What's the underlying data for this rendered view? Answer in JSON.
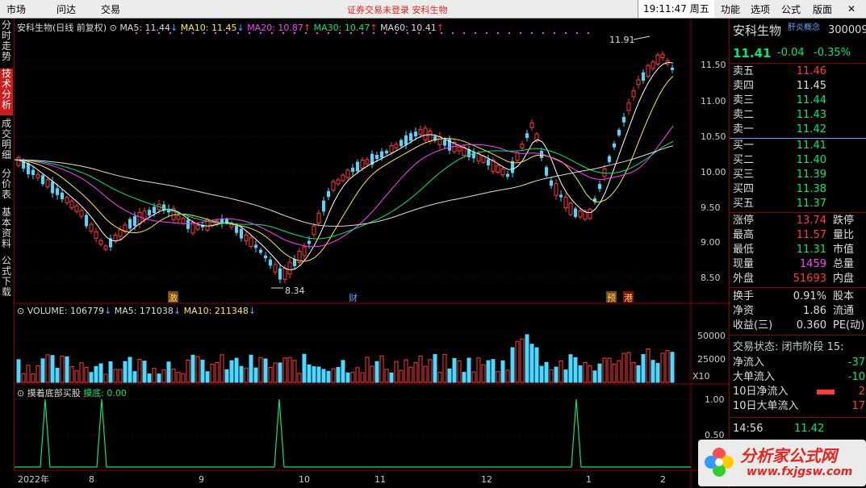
{
  "menu": {
    "items": [
      "市场",
      "问达",
      "交易"
    ],
    "notice": "证券交易未登录  安科生物",
    "time": "19:11:47 周五",
    "right_items": [
      "功能",
      "选项",
      "公式",
      "版面"
    ]
  },
  "left_tabs": [
    "分时走势",
    "技术分析",
    "成交明细",
    "分价表",
    "基本资料",
    "公式下载"
  ],
  "kline": {
    "title": "安科生物(日线 前复权)",
    "ma5": "MA5: 11.44",
    "ma10": "MA10: 11.45",
    "ma20": "MA20: 10.87",
    "ma30": "MA30: 10.47",
    "ma60": "MA60: 10.41",
    "high_label": "11.91",
    "low_label": "8.34",
    "y_ticks": [
      "11.50",
      "11.00",
      "10.50",
      "10.00",
      "9.50",
      "9.00",
      "8.50"
    ],
    "events": [
      "激",
      "财",
      "预",
      "港"
    ]
  },
  "volume": {
    "label": "VOLUME: 106779",
    "ma5": "MA5: 171038",
    "ma10": "MA10: 211348",
    "ticks": [
      "50000",
      "25000"
    ],
    "unit": "X10"
  },
  "indicator": {
    "label": "摸着底部买股",
    "value": "摸底: 0.00",
    "ticks": [
      "1.00",
      "0.50"
    ]
  },
  "xaxis": [
    "2022年",
    "8",
    "9",
    "10",
    "11",
    "12",
    "1",
    "2"
  ],
  "quote": {
    "name": "安科生物",
    "tag": "肝炎概念",
    "code": "300009",
    "price": "11.41",
    "change": "-0.04",
    "pct": "-0.35%",
    "asks": [
      {
        "label": "卖五",
        "price": "11.46"
      },
      {
        "label": "卖四",
        "price": "11.45"
      },
      {
        "label": "卖三",
        "price": "11.44"
      },
      {
        "label": "卖二",
        "price": "11.43"
      },
      {
        "label": "卖一",
        "price": "11.42"
      }
    ],
    "bids": [
      {
        "label": "买一",
        "price": "11.41"
      },
      {
        "label": "买二",
        "price": "11.40"
      },
      {
        "label": "买三",
        "price": "11.39"
      },
      {
        "label": "买四",
        "price": "11.38"
      },
      {
        "label": "买五",
        "price": "11.37"
      }
    ],
    "stats": [
      {
        "l": "涨停",
        "v": "13.74",
        "r": "跌停"
      },
      {
        "l": "最高",
        "v": "11.57",
        "r": "量比"
      },
      {
        "l": "最低",
        "v": "11.31",
        "r": "市值"
      },
      {
        "l": "现量",
        "v": "1459",
        "r": "总量"
      },
      {
        "l": "外盘",
        "v": "51693",
        "r": "内盘"
      }
    ],
    "fin": [
      {
        "l": "换手",
        "v": "0.91%",
        "r": "股本"
      },
      {
        "l": "净资",
        "v": "1.86",
        "r": "流通"
      },
      {
        "l": "收益(三)",
        "v": "0.360",
        "r": "PE(动)"
      }
    ],
    "status": "交易状态: 闭市阶段 15:",
    "flows": [
      {
        "l": "净流入",
        "v": "-37"
      },
      {
        "l": "大单流入",
        "v": "-10"
      },
      {
        "l": "10日净流入",
        "v": "2"
      },
      {
        "l": "10日大单流入",
        "v": "17"
      }
    ],
    "tick": {
      "time": "14:56",
      "price": "11.42"
    }
  },
  "watermark": {
    "cn": "分析家公式网",
    "url": "www.fxjgsw.com"
  }
}
